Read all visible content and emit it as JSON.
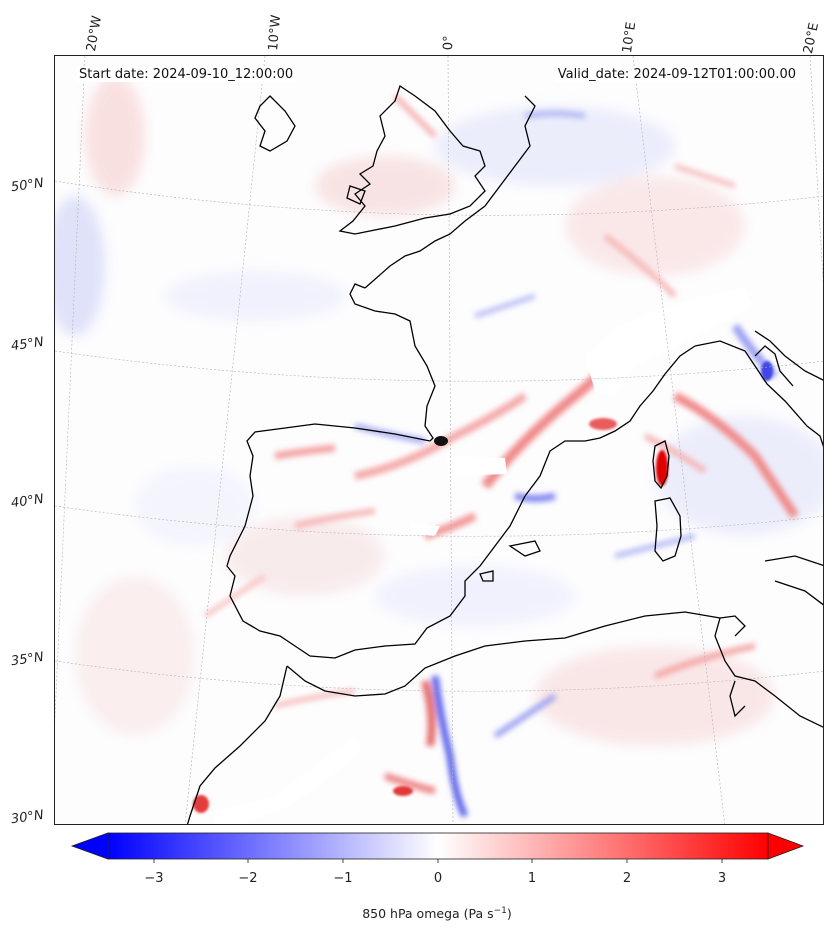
{
  "header": {
    "start_date": "Start date: 2024-09-10_12:00:00",
    "valid_date": "Valid_date: 2024-09-12T01:00:00.00"
  },
  "longitude_labels": [
    "20°W",
    "10°W",
    "0°",
    "10°E",
    "20°E"
  ],
  "latitude_labels": [
    "50°N",
    "45°N",
    "40°N",
    "35°N",
    "30°N"
  ],
  "colorbar": {
    "label_main": "850 hPa omega (Pa s",
    "label_sup": "−1",
    "label_end": ")",
    "ticks": [
      "−3",
      "−2",
      "−1",
      "0",
      "1",
      "2",
      "3"
    ],
    "range": [
      -3.7,
      3.7
    ],
    "colormap": "bwr",
    "extend": "both"
  },
  "colors": {
    "negative": "#0000ff",
    "zero": "#ffffff",
    "positive": "#ff0000",
    "coastline": "#000000"
  }
}
